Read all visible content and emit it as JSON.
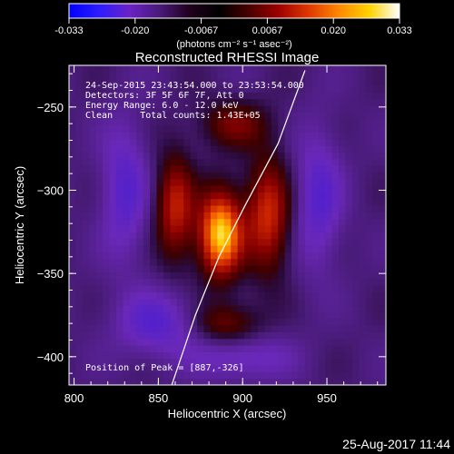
{
  "chart_data": {
    "type": "heatmap",
    "title": "Reconstructed RHESSI Image",
    "xlabel": "Heliocentric X (arcsec)",
    "ylabel": "Heliocentric Y (arcsec)",
    "xlim": [
      797,
      985
    ],
    "ylim": [
      -417,
      -225
    ],
    "x_ticks": [
      800,
      850,
      900,
      950
    ],
    "y_ticks": [
      -250,
      -300,
      -350,
      -400
    ],
    "colorbar": {
      "ticks": [
        "-0.033",
        "-0.020",
        "-0.0067",
        "0.0067",
        "0.020",
        "0.033"
      ],
      "range": [
        -0.033,
        0.033
      ],
      "unit_label": "(photons cm⁻² s⁻¹ asec⁻²)",
      "colors": [
        "#0000ff",
        "#2d1cff",
        "#6a22c8",
        "#4a1a7a",
        "#20001f",
        "#000000",
        "#4a0000",
        "#a00000",
        "#e03a00",
        "#ff8a00",
        "#ffd200",
        "#ffffff"
      ]
    },
    "annotations": [
      "24-Sep-2015 23:43:54.000 to 23:53:54.000",
      "Detectors: 3F 5F 6F 7F, Att 0",
      "Energy Range: 6.0 - 12.0 keV",
      "Clean     Total counts: 1.43E+05"
    ],
    "peak_label": "Position of Peak = [887,-326]",
    "peak": {
      "x": 887,
      "y": -326,
      "value": 0.033
    },
    "limb_line": [
      [
        858,
        -417
      ],
      [
        872,
        -375
      ],
      [
        886,
        -340
      ],
      [
        901,
        -310
      ],
      [
        921,
        -272
      ],
      [
        937,
        -228
      ]
    ],
    "sources": [
      {
        "x": 887,
        "y": -326,
        "sx": 9,
        "sy": 18,
        "amp": 1.0
      },
      {
        "x": 860,
        "y": -310,
        "sx": 8,
        "sy": 22,
        "amp": 0.55
      },
      {
        "x": 915,
        "y": -315,
        "sx": 9,
        "sy": 24,
        "amp": 0.6
      },
      {
        "x": 895,
        "y": -260,
        "sx": 14,
        "sy": 10,
        "amp": 0.35
      },
      {
        "x": 890,
        "y": -380,
        "sx": 14,
        "sy": 9,
        "amp": 0.35
      },
      {
        "x": 830,
        "y": -300,
        "sx": 10,
        "sy": 30,
        "amp": -0.3
      },
      {
        "x": 945,
        "y": -305,
        "sx": 10,
        "sy": 30,
        "amp": -0.3
      },
      {
        "x": 850,
        "y": -380,
        "sx": 18,
        "sy": 14,
        "amp": -0.3
      },
      {
        "x": 900,
        "y": -400,
        "sx": 20,
        "sy": 10,
        "amp": -0.25
      }
    ]
  },
  "footer": {
    "timestamp": "25-Aug-2017 11:44"
  }
}
